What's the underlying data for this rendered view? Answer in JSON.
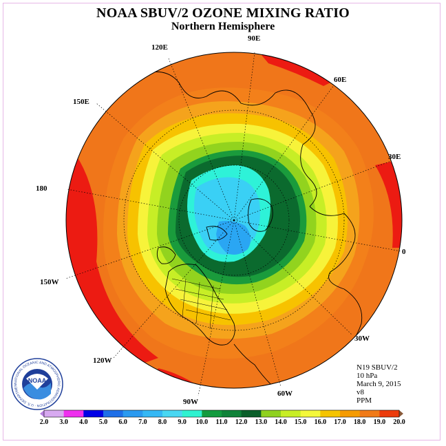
{
  "title": "NOAA SBUV/2 OZONE MIXING RATIO",
  "subtitle": "Northern Hemisphere",
  "longitude_labels": [
    "90E",
    "60E",
    "30E",
    "0",
    "30W",
    "60W",
    "90W",
    "120W",
    "150W",
    "180",
    "150E",
    "120E"
  ],
  "info": {
    "satellite": "N19 SBUV/2",
    "level": "10 hPa",
    "date": "March 9, 2015",
    "version": "v8",
    "units": "PPM"
  },
  "logo": {
    "text": "NOAA",
    "ring_text": "NATIONAL OCEANIC AND ATMOSPHERIC ADMINISTRATION · U.S. DEPARTMENT OF COMMERCE"
  },
  "colorbar": {
    "ticks": [
      "2.0",
      "3.0",
      "4.0",
      "5.0",
      "6.0",
      "7.0",
      "8.0",
      "9.0",
      "10.0",
      "11.0",
      "12.0",
      "13.0",
      "14.0",
      "15.0",
      "16.0",
      "17.0",
      "18.0",
      "19.0",
      "20.0"
    ],
    "colors": [
      "#b77fe0",
      "#d7a9f0",
      "#ef2fef",
      "#0000e6",
      "#1e6fe8",
      "#2a9af0",
      "#35b8f5",
      "#49d7f2",
      "#2ef2d0",
      "#129b3e",
      "#0f8238",
      "#0a5f2a",
      "#8fd11f",
      "#c8ee25",
      "#f4f83a",
      "#f5c400",
      "#f59b00",
      "#f07a18",
      "#ec3b0c",
      "#e50f0f",
      "#8a5a3a"
    ]
  },
  "map_colors": {
    "ring_red": "#ec1b12",
    "ring_dark_orange": "#ee5a10",
    "ring_orange": "#f3801a",
    "light_orange": "#f5a31c",
    "amber": "#f7c200",
    "yellow": "#f7f33a",
    "yellow_green": "#c7ee26",
    "light_green": "#92d31e",
    "green": "#1a9b3c",
    "dark_green": "#0b6a2e",
    "cyan": "#2ef2d8",
    "sky": "#3ad0f5",
    "blue": "#2aa6f3"
  }
}
